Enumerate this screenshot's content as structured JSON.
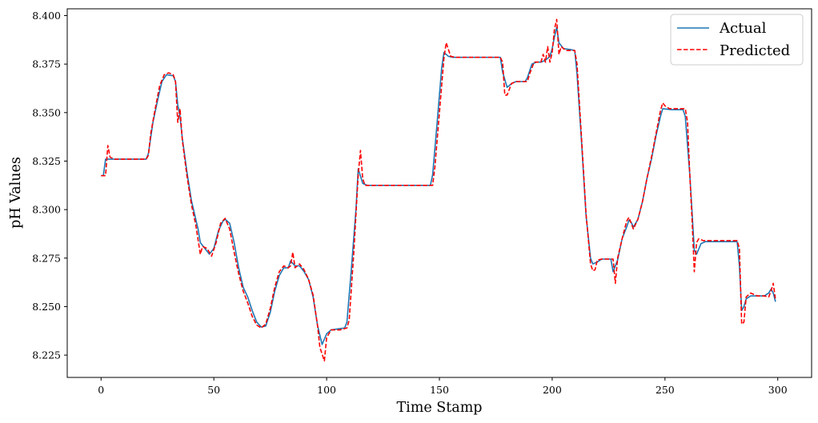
{
  "chart_data": {
    "type": "line",
    "xlabel": "Time Stamp",
    "ylabel": "pH Values",
    "xlim": [
      -15,
      315
    ],
    "ylim": [
      8.2135,
      8.4035
    ],
    "xticks": [
      0,
      50,
      100,
      150,
      200,
      250,
      300
    ],
    "xtick_labels": [
      "0",
      "50",
      "100",
      "150",
      "200",
      "250",
      "300"
    ],
    "yticks": [
      8.225,
      8.25,
      8.275,
      8.3,
      8.325,
      8.35,
      8.375,
      8.4
    ],
    "ytick_labels": [
      "8.225",
      "8.250",
      "8.275",
      "8.300",
      "8.325",
      "8.350",
      "8.375",
      "8.400"
    ],
    "grid": false,
    "legend_position": "top-right",
    "series": [
      {
        "name": "Actual",
        "color": "#1f77b4",
        "style": "solid",
        "points": [
          [
            0,
            8.3175
          ],
          [
            1,
            8.3175
          ],
          [
            2,
            8.326
          ],
          [
            5,
            8.326
          ],
          [
            20,
            8.326
          ],
          [
            21,
            8.329
          ],
          [
            23,
            8.345
          ],
          [
            25,
            8.356
          ],
          [
            27,
            8.366
          ],
          [
            29,
            8.3695
          ],
          [
            32,
            8.369
          ],
          [
            33,
            8.366
          ],
          [
            34,
            8.354
          ],
          [
            35,
            8.348
          ],
          [
            36,
            8.337
          ],
          [
            38,
            8.32
          ],
          [
            40,
            8.305
          ],
          [
            43,
            8.29
          ],
          [
            44,
            8.283
          ],
          [
            46,
            8.28
          ],
          [
            48,
            8.277
          ],
          [
            50,
            8.28
          ],
          [
            52,
            8.289
          ],
          [
            54,
            8.294
          ],
          [
            55,
            8.295
          ],
          [
            57,
            8.293
          ],
          [
            59,
            8.283
          ],
          [
            61,
            8.27
          ],
          [
            63,
            8.26
          ],
          [
            65,
            8.255
          ],
          [
            67,
            8.248
          ],
          [
            69,
            8.242
          ],
          [
            71,
            8.2395
          ],
          [
            73,
            8.24
          ],
          [
            75,
            8.247
          ],
          [
            77,
            8.258
          ],
          [
            79,
            8.266
          ],
          [
            81,
            8.27
          ],
          [
            83,
            8.27
          ],
          [
            84,
            8.2735
          ],
          [
            86,
            8.271
          ],
          [
            88,
            8.271
          ],
          [
            90,
            8.268
          ],
          [
            92,
            8.264
          ],
          [
            94,
            8.255
          ],
          [
            96,
            8.24
          ],
          [
            98,
            8.2305
          ],
          [
            100,
            8.236
          ],
          [
            102,
            8.238
          ],
          [
            105,
            8.2385
          ],
          [
            108,
            8.239
          ],
          [
            109,
            8.242
          ],
          [
            111,
            8.27
          ],
          [
            113,
            8.3
          ],
          [
            114,
            8.321
          ],
          [
            116,
            8.3135
          ],
          [
            118,
            8.3125
          ],
          [
            120,
            8.3125
          ],
          [
            130,
            8.3125
          ],
          [
            140,
            8.3125
          ],
          [
            146,
            8.3125
          ],
          [
            147,
            8.318
          ],
          [
            149,
            8.345
          ],
          [
            151,
            8.373
          ],
          [
            152,
            8.381
          ],
          [
            154,
            8.379
          ],
          [
            156,
            8.3785
          ],
          [
            165,
            8.3785
          ],
          [
            175,
            8.3785
          ],
          [
            177,
            8.3785
          ],
          [
            178,
            8.371
          ],
          [
            180,
            8.363
          ],
          [
            182,
            8.365
          ],
          [
            184,
            8.366
          ],
          [
            188,
            8.366
          ],
          [
            189,
            8.368
          ],
          [
            191,
            8.375
          ],
          [
            193,
            8.376
          ],
          [
            195,
            8.376
          ],
          [
            197,
            8.377
          ],
          [
            199,
            8.379
          ],
          [
            200,
            8.383
          ],
          [
            201,
            8.389
          ],
          [
            202,
            8.394
          ],
          [
            203,
            8.386
          ],
          [
            205,
            8.383
          ],
          [
            208,
            8.3825
          ],
          [
            210,
            8.382
          ],
          [
            211,
            8.37
          ],
          [
            213,
            8.335
          ],
          [
            215,
            8.297
          ],
          [
            217,
            8.275
          ],
          [
            218,
            8.272
          ],
          [
            220,
            8.273
          ],
          [
            222,
            8.2745
          ],
          [
            226,
            8.2745
          ],
          [
            227,
            8.268
          ],
          [
            229,
            8.274
          ],
          [
            231,
            8.285
          ],
          [
            233,
            8.291
          ],
          [
            234,
            8.2945
          ],
          [
            235,
            8.2935
          ],
          [
            236,
            8.291
          ],
          [
            238,
            8.295
          ],
          [
            240,
            8.304
          ],
          [
            242,
            8.316
          ],
          [
            244,
            8.326
          ],
          [
            246,
            8.338
          ],
          [
            248,
            8.348
          ],
          [
            249,
            8.352
          ],
          [
            253,
            8.3515
          ],
          [
            256,
            8.3515
          ],
          [
            258,
            8.3515
          ],
          [
            259,
            8.348
          ],
          [
            261,
            8.318
          ],
          [
            262,
            8.299
          ],
          [
            263,
            8.279
          ],
          [
            264,
            8.277
          ],
          [
            266,
            8.2825
          ],
          [
            268,
            8.2835
          ],
          [
            275,
            8.2835
          ],
          [
            282,
            8.2835
          ],
          [
            283,
            8.271
          ],
          [
            284,
            8.248
          ],
          [
            285,
            8.25
          ],
          [
            286,
            8.254
          ],
          [
            288,
            8.2555
          ],
          [
            292,
            8.2555
          ],
          [
            294,
            8.2555
          ],
          [
            296,
            8.257
          ],
          [
            297,
            8.259
          ],
          [
            298,
            8.257
          ],
          [
            299,
            8.2525
          ]
        ]
      },
      {
        "name": "Predicted",
        "color": "#ff0000",
        "style": "dashed",
        "points": [
          [
            0,
            8.3175
          ],
          [
            2,
            8.3175
          ],
          [
            3,
            8.333
          ],
          [
            4,
            8.327
          ],
          [
            6,
            8.326
          ],
          [
            20,
            8.326
          ],
          [
            21,
            8.328
          ],
          [
            22,
            8.339
          ],
          [
            24,
            8.352
          ],
          [
            26,
            8.364
          ],
          [
            28,
            8.3695
          ],
          [
            30,
            8.3705
          ],
          [
            32,
            8.3695
          ],
          [
            33,
            8.366
          ],
          [
            34,
            8.345
          ],
          [
            35,
            8.352
          ],
          [
            36,
            8.336
          ],
          [
            38,
            8.318
          ],
          [
            40,
            8.303
          ],
          [
            42,
            8.292
          ],
          [
            44,
            8.277
          ],
          [
            45,
            8.281
          ],
          [
            47,
            8.28
          ],
          [
            49,
            8.276
          ],
          [
            51,
            8.283
          ],
          [
            53,
            8.293
          ],
          [
            55,
            8.2955
          ],
          [
            57,
            8.29
          ],
          [
            59,
            8.278
          ],
          [
            61,
            8.267
          ],
          [
            63,
            8.258
          ],
          [
            65,
            8.252
          ],
          [
            67,
            8.245
          ],
          [
            69,
            8.2405
          ],
          [
            71,
            8.239
          ],
          [
            73,
            8.241
          ],
          [
            75,
            8.249
          ],
          [
            77,
            8.26
          ],
          [
            79,
            8.268
          ],
          [
            81,
            8.271
          ],
          [
            83,
            8.27
          ],
          [
            84,
            8.271
          ],
          [
            85,
            8.278
          ],
          [
            86,
            8.27
          ],
          [
            88,
            8.272
          ],
          [
            90,
            8.269
          ],
          [
            92,
            8.264
          ],
          [
            94,
            8.256
          ],
          [
            96,
            8.24
          ],
          [
            97,
            8.229
          ],
          [
            99,
            8.222
          ],
          [
            100,
            8.234
          ],
          [
            102,
            8.238
          ],
          [
            106,
            8.238
          ],
          [
            109,
            8.239
          ],
          [
            110,
            8.243
          ],
          [
            112,
            8.277
          ],
          [
            114,
            8.318
          ],
          [
            115,
            8.3305
          ],
          [
            116,
            8.316
          ],
          [
            117,
            8.3125
          ],
          [
            119,
            8.3125
          ],
          [
            130,
            8.3125
          ],
          [
            147,
            8.3125
          ],
          [
            148,
            8.322
          ],
          [
            150,
            8.35
          ],
          [
            152,
            8.378
          ],
          [
            153,
            8.386
          ],
          [
            155,
            8.379
          ],
          [
            157,
            8.3785
          ],
          [
            177,
            8.3785
          ],
          [
            178,
            8.376
          ],
          [
            179,
            8.359
          ],
          [
            180,
            8.359
          ],
          [
            182,
            8.365
          ],
          [
            184,
            8.366
          ],
          [
            189,
            8.366
          ],
          [
            190,
            8.37
          ],
          [
            192,
            8.376
          ],
          [
            195,
            8.376
          ],
          [
            196,
            8.38
          ],
          [
            197,
            8.376
          ],
          [
            198,
            8.384
          ],
          [
            199,
            8.376
          ],
          [
            200,
            8.381
          ],
          [
            201,
            8.393
          ],
          [
            202,
            8.398
          ],
          [
            203,
            8.38
          ],
          [
            204,
            8.384
          ],
          [
            206,
            8.382
          ],
          [
            210,
            8.382
          ],
          [
            211,
            8.375
          ],
          [
            213,
            8.337
          ],
          [
            215,
            8.298
          ],
          [
            217,
            8.272
          ],
          [
            218,
            8.2685
          ],
          [
            219,
            8.269
          ],
          [
            220,
            8.274
          ],
          [
            222,
            8.2745
          ],
          [
            227,
            8.2745
          ],
          [
            228,
            8.262
          ],
          [
            229,
            8.275
          ],
          [
            231,
            8.285
          ],
          [
            233,
            8.294
          ],
          [
            234,
            8.296
          ],
          [
            236,
            8.29
          ],
          [
            238,
            8.295
          ],
          [
            240,
            8.304
          ],
          [
            242,
            8.316
          ],
          [
            244,
            8.327
          ],
          [
            246,
            8.339
          ],
          [
            248,
            8.351
          ],
          [
            249,
            8.355
          ],
          [
            250,
            8.3535
          ],
          [
            252,
            8.352
          ],
          [
            259,
            8.352
          ],
          [
            260,
            8.345
          ],
          [
            261,
            8.318
          ],
          [
            262,
            8.295
          ],
          [
            263,
            8.268
          ],
          [
            264,
            8.283
          ],
          [
            265,
            8.285
          ],
          [
            267,
            8.284
          ],
          [
            282,
            8.284
          ],
          [
            283,
            8.28
          ],
          [
            284,
            8.241
          ],
          [
            285,
            8.242
          ],
          [
            286,
            8.255
          ],
          [
            288,
            8.257
          ],
          [
            291,
            8.2555
          ],
          [
            294,
            8.2555
          ],
          [
            296,
            8.255
          ],
          [
            297,
            8.258
          ],
          [
            298,
            8.262
          ],
          [
            299,
            8.2535
          ]
        ]
      }
    ]
  }
}
